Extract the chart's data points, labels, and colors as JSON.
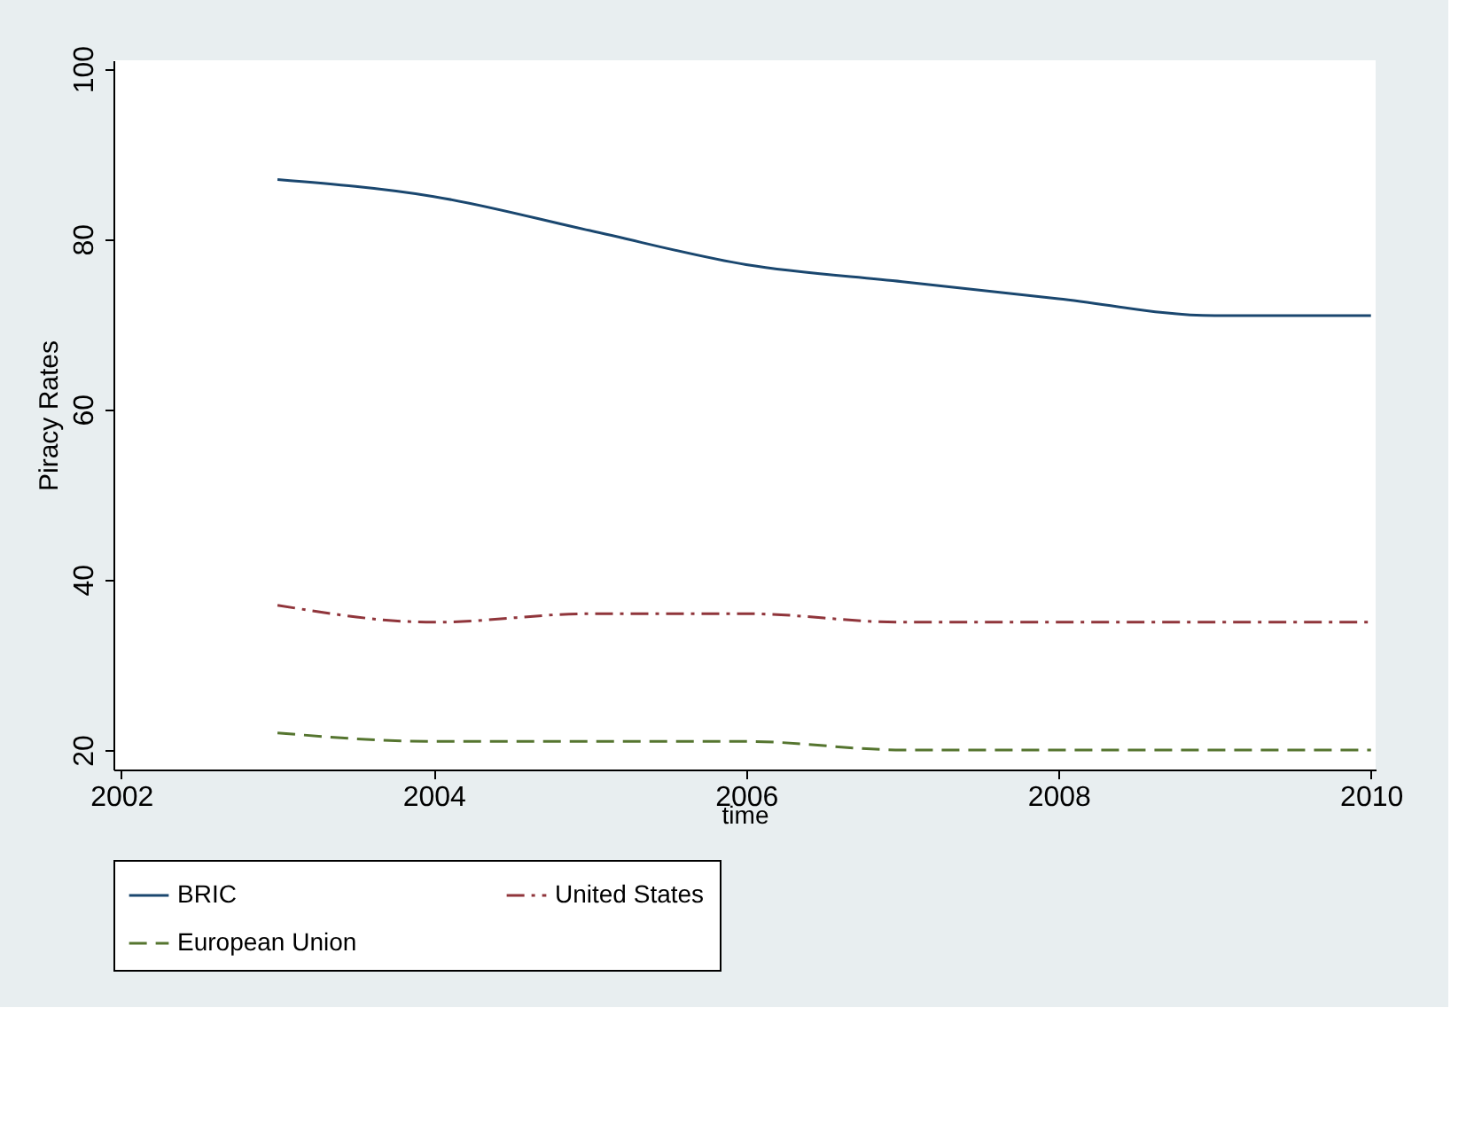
{
  "chart_data": {
    "type": "line",
    "xlabel": "time",
    "ylabel": "Piracy Rates",
    "x": [
      2003,
      2004,
      2005,
      2006,
      2007,
      2008,
      2009,
      2010
    ],
    "series": [
      {
        "name": "BRIC",
        "color": "#1a476f",
        "line_style": "solid",
        "values": [
          87,
          85,
          81,
          77,
          75,
          73,
          71,
          71
        ]
      },
      {
        "name": "United States",
        "color": "#90353b",
        "line_style": "dashdot",
        "values": [
          37,
          35,
          36,
          36,
          35,
          35,
          35,
          35
        ]
      },
      {
        "name": "European Union",
        "color": "#55752f",
        "line_style": "dashed",
        "values": [
          22,
          21,
          21,
          21,
          20,
          20,
          20,
          20
        ]
      }
    ],
    "xlim": [
      2001.95,
      2010.03
    ],
    "xticks": [
      2002,
      2004,
      2006,
      2008,
      2010
    ],
    "ylim": [
      17.7,
      101
    ],
    "yticks": [
      20,
      40,
      60,
      80,
      100
    ],
    "grid": false,
    "legend": "bottom",
    "marker": "none"
  }
}
